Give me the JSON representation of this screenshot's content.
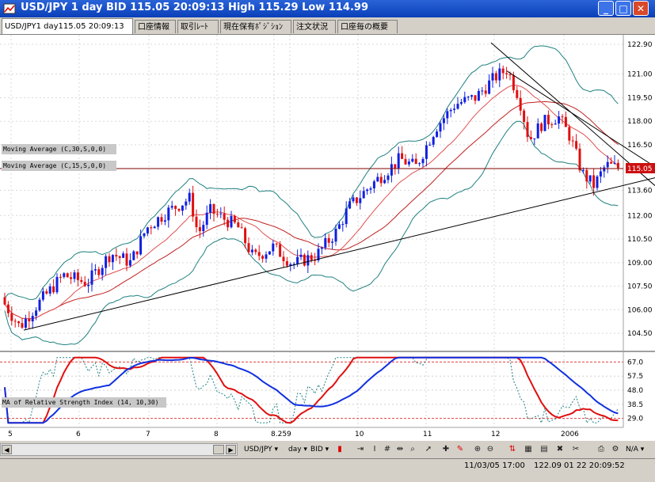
{
  "window": {
    "title": "USD/JPY 1 day BID 115.05 20:09:13 High 115.29 Low 114.99",
    "minimize": "_",
    "maximize": "□",
    "close": "✕"
  },
  "tabs": [
    {
      "label": "USD/JPY1 day115.05 20:09:13",
      "active": true
    },
    {
      "label": "口座情報",
      "active": false
    },
    {
      "label": "取引ﾚｰﾄ",
      "active": false
    },
    {
      "label": "現在保有ﾎﾟｼﾞｼｮﾝ",
      "active": false
    },
    {
      "label": "注文状況",
      "active": false
    },
    {
      "label": "口座毎の概要",
      "active": false
    }
  ],
  "chart_data": [
    {
      "type": "candlestick",
      "title": "",
      "y_ticks": [
        "122.90",
        "121.00",
        "119.50",
        "118.00",
        "116.50",
        "115.05",
        "113.60",
        "112.00",
        "110.50",
        "109.00",
        "107.50",
        "106.00",
        "104.50"
      ],
      "ylim": [
        103.6,
        123.2
      ],
      "current_price_label": "115.05",
      "indicator_labels": [
        "Moving Average (C,30,S,0,0)",
        "Moving Average (C,15,S,0,0)"
      ],
      "x_labels": [
        "5",
        "6",
        "7",
        "8",
        "8.25",
        "9",
        "10",
        "11",
        "12",
        "2006"
      ],
      "trendlines": "support line and resistance lines",
      "colors": {
        "up": "#1020e0",
        "down": "#e01010",
        "ma_long": "#c02020",
        "ma_short": "#e05050",
        "bollinger": "#208080",
        "current": "#800000"
      }
    },
    {
      "type": "line",
      "title": "",
      "indicator_label": "MA of Relative Strength Index (14, 10,30)",
      "y_ticks": [
        "67.0",
        "57.5",
        "48.0",
        "38.5",
        "29.0"
      ],
      "ylim": [
        24,
        72
      ],
      "colors": {
        "fast": "#e01010",
        "slow": "#1030e0",
        "rsi": "#208080",
        "levels": "#e04040"
      }
    }
  ],
  "toolbar": {
    "symbol": "USD/JPY ▾",
    "interval": "day ▾",
    "price_type": "BID ▾",
    "icons": [
      "candle-icon",
      "bar-icon",
      "line-icon",
      "hash-icon",
      "ticks-icon",
      "zoom-icon",
      "cursor-icon",
      "crosshair-icon",
      "pencil-icon",
      "zoom-in-icon",
      "zoom-out-icon",
      "print-icon",
      "settings-icon"
    ],
    "na": "N/A ▾"
  },
  "status": {
    "datetime": "11/03/05 17:00",
    "price": "122.09",
    "session": "01 22 20:09:52"
  }
}
